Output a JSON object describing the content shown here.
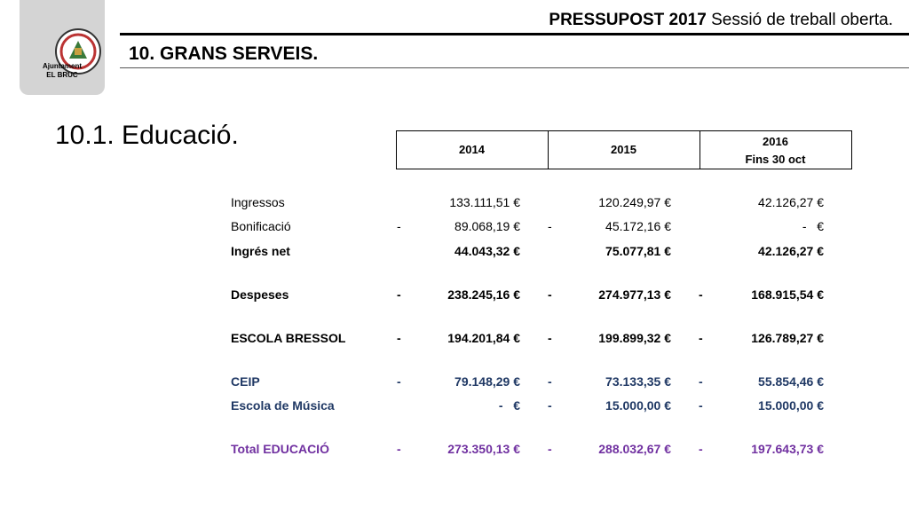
{
  "logo": {
    "line1": "Ajuntament",
    "line2": "EL BRUC"
  },
  "header": {
    "title_bold": "PRESSUPOST 2017",
    "title_rest": "Sessió de treball oberta.",
    "section": "10. GRANS SERVEIS."
  },
  "subsection": "10.1. Educació.",
  "table": {
    "columns": [
      {
        "year": "2014"
      },
      {
        "year": "2015"
      },
      {
        "year": "2016",
        "note": "Fins 30 oct"
      }
    ],
    "rows": [
      {
        "label": "Ingressos",
        "cells": [
          {
            "amount": "133.111,51 €"
          },
          {
            "amount": "120.249,97 €"
          },
          {
            "amount": "42.126,27 €"
          }
        ]
      },
      {
        "label": "Bonificació",
        "cells": [
          {
            "sign": "-",
            "amount": "89.068,19 €"
          },
          {
            "sign": "-",
            "amount": "45.172,16 €"
          },
          {
            "amount": "-   €"
          }
        ]
      },
      {
        "label": "Ingrés net",
        "cells": [
          {
            "amount": "44.043,32 €"
          },
          {
            "amount": "75.077,81 €"
          },
          {
            "amount": "42.126,27 €"
          }
        ]
      },
      {
        "label": "Despeses",
        "cells": [
          {
            "sign": "-",
            "amount": "238.245,16 €"
          },
          {
            "sign": "-",
            "amount": "274.977,13 €"
          },
          {
            "sign": "-",
            "amount": "168.915,54 €"
          }
        ]
      },
      {
        "label": "ESCOLA BRESSOL",
        "cells": [
          {
            "sign": "-",
            "amount": "194.201,84 €"
          },
          {
            "sign": "-",
            "amount": "199.899,32 €"
          },
          {
            "sign": "-",
            "amount": "126.789,27 €"
          }
        ]
      },
      {
        "label": "CEIP",
        "cells": [
          {
            "sign": "-",
            "amount": "79.148,29 €"
          },
          {
            "sign": "-",
            "amount": "73.133,35 €"
          },
          {
            "sign": "-",
            "amount": "55.854,46 €"
          }
        ]
      },
      {
        "label": "Escola de Música",
        "cells": [
          {
            "amount": "-   €"
          },
          {
            "sign": "-",
            "amount": "15.000,00 €"
          },
          {
            "sign": "-",
            "amount": "15.000,00 €"
          }
        ]
      },
      {
        "label": "Total EDUCACIÓ",
        "cells": [
          {
            "sign": "-",
            "amount": "273.350,13 €"
          },
          {
            "sign": "-",
            "amount": "288.032,67 €"
          },
          {
            "sign": "-",
            "amount": "197.643,73 €"
          }
        ]
      }
    ]
  }
}
